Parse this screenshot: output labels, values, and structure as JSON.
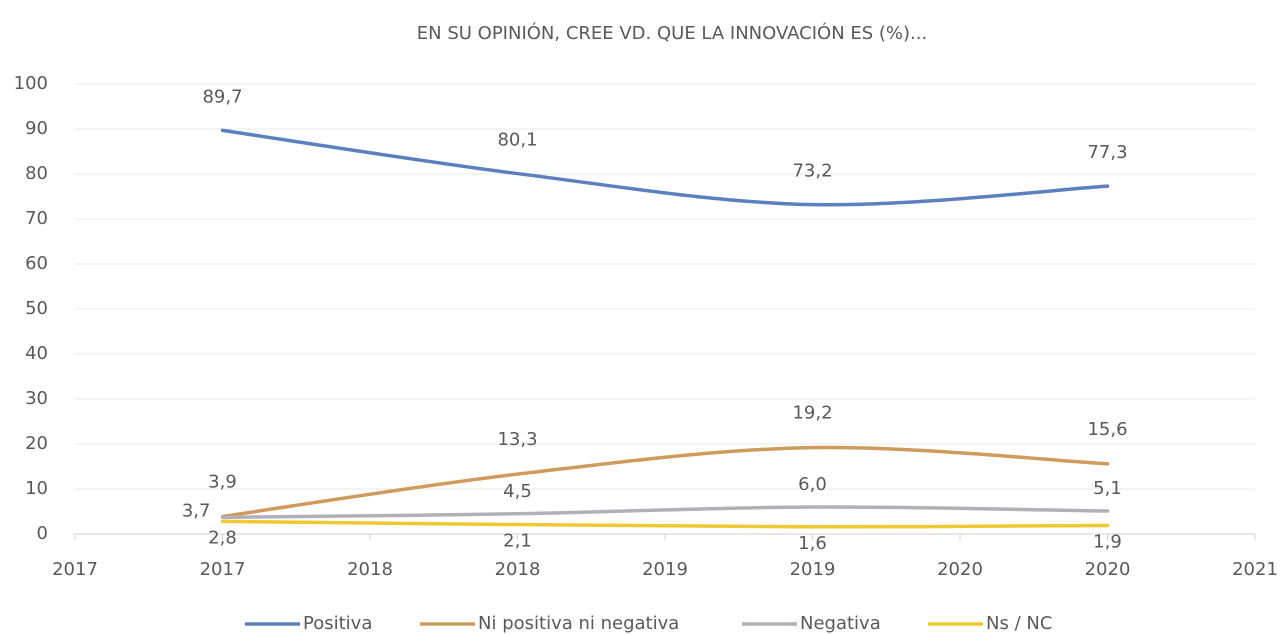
{
  "chart_data": {
    "type": "line",
    "title": "EN SU OPINIÓN, CREE VD. QUE LA INNOVACIÓN ES (%)...",
    "x": [
      2017.5,
      2018.5,
      2019.5,
      2020.5
    ],
    "series": [
      {
        "name": "Positiva",
        "color": "#5b7fbf",
        "values": [
          89.7,
          80.1,
          73.2,
          77.3
        ],
        "value_labels": [
          "89,7",
          "80,1",
          "73,2",
          "77,3"
        ]
      },
      {
        "name": "Ni positiva ni negativa",
        "color": "#d09a5c",
        "values": [
          3.9,
          13.3,
          19.2,
          15.6
        ],
        "value_labels": [
          "3,9",
          "13,3",
          "19,2",
          "15,6"
        ]
      },
      {
        "name": "Negativa",
        "color": "#b0b0b8",
        "values": [
          3.7,
          4.5,
          6.0,
          5.1
        ],
        "value_labels": [
          "3,7",
          "4,5",
          "6,0",
          "5,1"
        ]
      },
      {
        "name": "Ns / NC",
        "color": "#f0c832",
        "values": [
          2.8,
          2.1,
          1.6,
          1.9
        ],
        "value_labels": [
          "2,8",
          "2,1",
          "1,6",
          "1,9"
        ]
      }
    ],
    "xlim": [
      2017,
      2021
    ],
    "xticks": [
      2017,
      {
        "value": 2017.5,
        "label": "2017"
      },
      2018,
      {
        "value": 2018.5,
        "label": "2018"
      },
      2019,
      {
        "value": 2019.5,
        "label": "2019"
      },
      2020,
      {
        "value": 2020.5,
        "label": "2020"
      },
      2021
    ],
    "ylim": [
      0,
      100
    ],
    "yticks": [
      0,
      10,
      20,
      30,
      40,
      50,
      60,
      70,
      80,
      90,
      100
    ],
    "grid": true,
    "smooth": true,
    "legend": "bottom"
  }
}
